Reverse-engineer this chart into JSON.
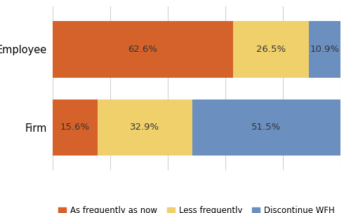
{
  "categories": [
    "Employee",
    "Firm"
  ],
  "segments": {
    "As frequently as now": [
      62.6,
      15.6
    ],
    "Less frequently": [
      26.5,
      32.9
    ],
    "Discontinue WFH": [
      10.9,
      51.5
    ]
  },
  "colors": {
    "As frequently as now": "#D4622A",
    "Less frequently": "#F0D06A",
    "Discontinue WFH": "#6B8FBF"
  },
  "bar_height": 0.72,
  "background_color": "#ffffff",
  "text_color": "#333333",
  "label_fontsize": 9.5,
  "legend_fontsize": 8.5,
  "ytick_fontsize": 10.5,
  "xlim": [
    0,
    100
  ],
  "grid_color": "#d0d0d0",
  "fig_width": 5.0,
  "fig_height": 3.04,
  "dpi": 100
}
